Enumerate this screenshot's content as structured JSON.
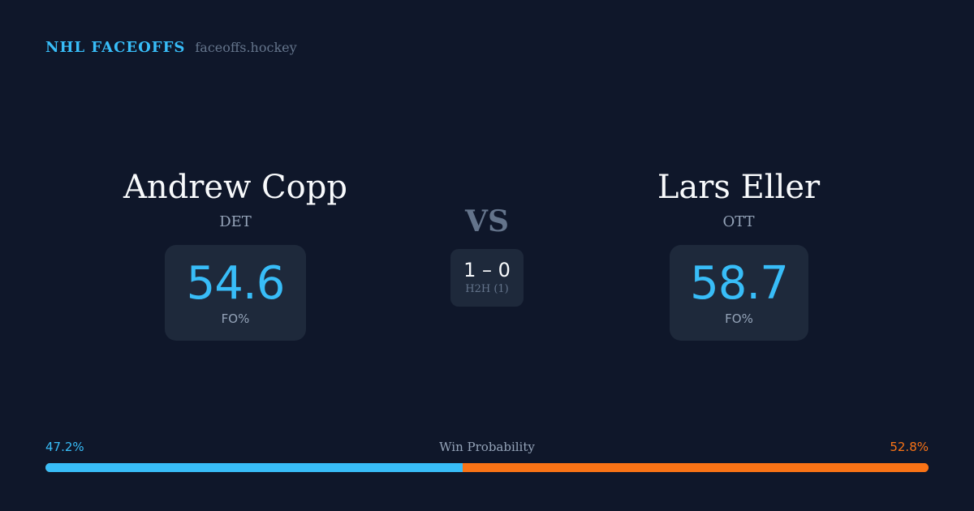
{
  "brand": {
    "title": "NHL FACEOFFS",
    "url": "faceoffs.hockey"
  },
  "players": [
    {
      "name": "Andrew Copp",
      "team": "DET",
      "fo_pct": "54.6",
      "fo_label": "FO%"
    },
    {
      "name": "Lars Eller",
      "team": "OTT",
      "fo_pct": "58.7",
      "fo_label": "FO%"
    }
  ],
  "vs": "VS",
  "h2h": {
    "score": "1 – 0",
    "label": "H2H (1)"
  },
  "win_probability": {
    "title": "Win Probability",
    "left": "47.2%",
    "right": "52.8%",
    "left_value": 47.2,
    "colors": {
      "left": "#38bdf8",
      "right": "#f97316"
    }
  }
}
